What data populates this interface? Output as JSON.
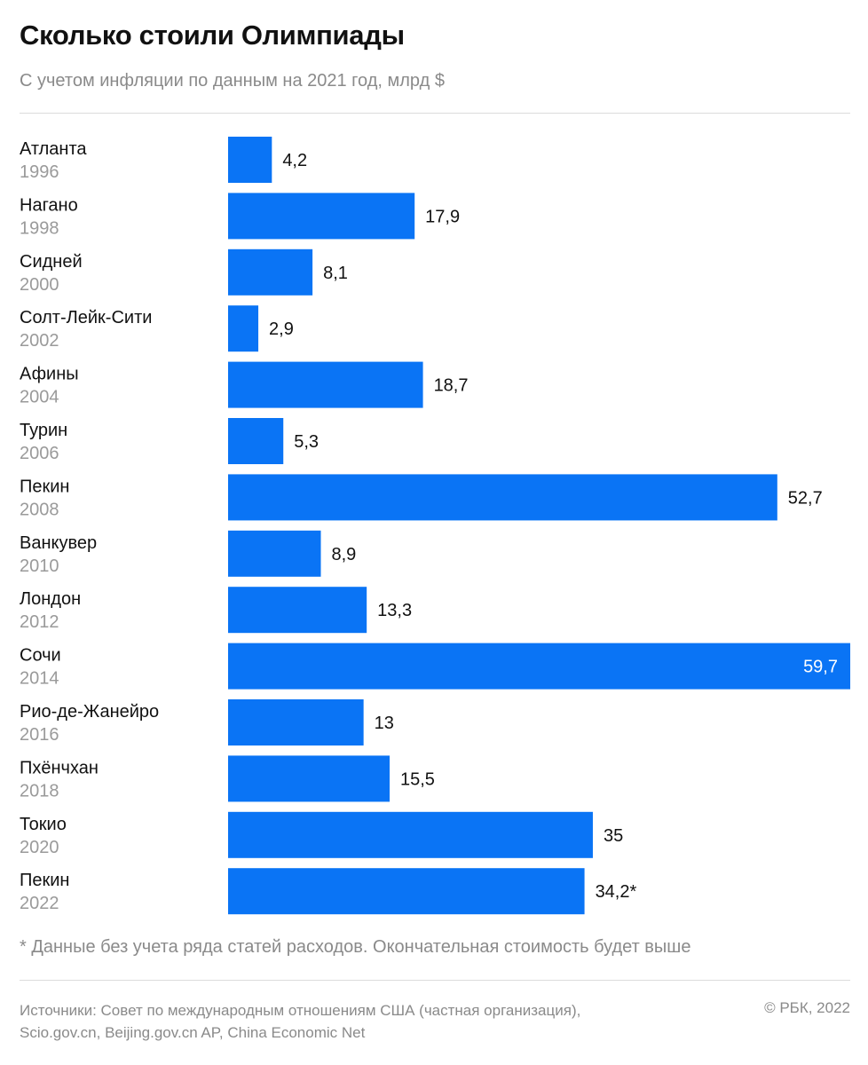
{
  "header": {
    "title": "Сколько стоили Олимпиады",
    "subtitle": "С учетом инфляции по данным на 2021 год, млрд $"
  },
  "colors": {
    "bar": "#0a74f5",
    "city_label": "#111111",
    "year_label": "#9a9a9a",
    "value_label": "#111111",
    "value_label_inside": "#ffffff"
  },
  "chart_data": {
    "type": "bar",
    "orientation": "horizontal",
    "unit": "млрд $",
    "categories": [
      {
        "city": "Атланта",
        "year": "1996"
      },
      {
        "city": "Нагано",
        "year": "1998"
      },
      {
        "city": "Сидней",
        "year": "2000"
      },
      {
        "city": "Солт-Лейк-Сити",
        "year": "2002"
      },
      {
        "city": "Афины",
        "year": "2004"
      },
      {
        "city": "Турин",
        "year": "2006"
      },
      {
        "city": "Пекин",
        "year": "2008"
      },
      {
        "city": "Ванкувер",
        "year": "2010"
      },
      {
        "city": "Лондон",
        "year": "2012"
      },
      {
        "city": "Сочи",
        "year": "2014"
      },
      {
        "city": "Рио-де-Жанейро",
        "year": "2016"
      },
      {
        "city": "Пхёнчхан",
        "year": "2018"
      },
      {
        "city": "Токио",
        "year": "2020"
      },
      {
        "city": "Пекин",
        "year": "2022"
      }
    ],
    "values": [
      4.2,
      17.9,
      8.1,
      2.9,
      18.7,
      5.3,
      52.7,
      8.9,
      13.3,
      59.7,
      13,
      15.5,
      35,
      34.2
    ],
    "value_labels": [
      "4,2",
      "17,9",
      "8,1",
      "2,9",
      "18,7",
      "5,3",
      "52,7",
      "8,9",
      "13,3",
      "59,7",
      "13",
      "15,5",
      "35",
      "34,2*"
    ],
    "xlim": [
      0,
      59.7
    ],
    "grid": false,
    "legend": "none"
  },
  "footer": {
    "footnote": "* Данные без учета ряда статей расходов. Окончательная стоимость будет выше",
    "sources_line1": "Источники: Совет по международным отношениям США (частная организация),",
    "sources_line2": "Scio.gov.cn, Beijing.gov.cn AP,  China Economic Net",
    "copyright": "© РБК, 2022"
  }
}
